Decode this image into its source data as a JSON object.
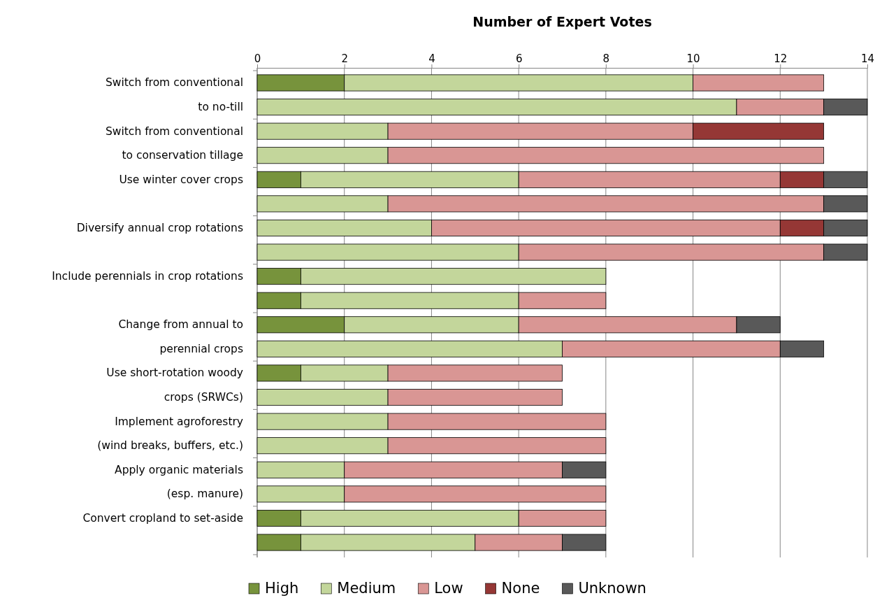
{
  "chart_data": {
    "type": "bar",
    "orientation": "horizontal",
    "stacked": true,
    "xlabel": "Number of Expert Votes",
    "xlim": [
      0,
      14
    ],
    "xticks": [
      0,
      2,
      4,
      6,
      8,
      10,
      12,
      14
    ],
    "grid": "x",
    "legend": "bottom",
    "categories": [
      "Switch from conventional\nto no-till",
      null,
      "Switch from conventional\nto conservation tillage",
      null,
      "Use winter cover crops",
      null,
      "Diversify annual crop rotations",
      null,
      "Include perennials in crop rotations",
      null,
      "Change from annual to\nperennial crops",
      null,
      "Use short-rotation woody\ncrops (SRWCs)",
      null,
      "Implement agroforestry\n(wind breaks, buffers, etc.)",
      null,
      "Apply organic materials\n(esp. manure)",
      null,
      "Convert cropland to set-aside",
      null
    ],
    "series": [
      {
        "name": "High",
        "color": "#77933c",
        "values": [
          2,
          null,
          null,
          null,
          1,
          null,
          null,
          null,
          1,
          1,
          2,
          null,
          1,
          null,
          null,
          null,
          null,
          null,
          1,
          1
        ]
      },
      {
        "name": "Medium",
        "color": "#c3d69b",
        "values": [
          8,
          11,
          3,
          3,
          5,
          3,
          4,
          6,
          7,
          5,
          4,
          7,
          2,
          3,
          3,
          3,
          2,
          2,
          5,
          4
        ]
      },
      {
        "name": "Low",
        "color": "#d99694",
        "values": [
          3,
          2,
          7,
          10,
          6,
          10,
          8,
          7,
          null,
          2,
          5,
          5,
          4,
          4,
          5,
          5,
          5,
          6,
          2,
          2
        ]
      },
      {
        "name": "None",
        "color": "#953735",
        "values": [
          null,
          null,
          3,
          null,
          1,
          null,
          1,
          null,
          null,
          null,
          null,
          null,
          null,
          null,
          null,
          null,
          null,
          null,
          null,
          null
        ]
      },
      {
        "name": "Unknown",
        "color": "#595959",
        "values": [
          null,
          1,
          null,
          null,
          1,
          1,
          1,
          1,
          null,
          null,
          1,
          1,
          null,
          null,
          null,
          null,
          1,
          null,
          null,
          1
        ]
      }
    ]
  }
}
